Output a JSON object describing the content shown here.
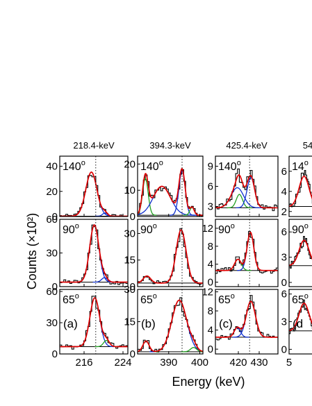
{
  "chart_data": {
    "type": "line",
    "xlabel": "Energy (keV)",
    "ylabel": "Counts (×10²)",
    "series_legend": {
      "data": "#000000",
      "total_fit": "#e00000",
      "peak_main": "#1030d0",
      "peak_secondary": "#20a020",
      "background": "#000000"
    },
    "columns": [
      {
        "title": "218.4-keV",
        "letter": "(a)",
        "xlim": [
          211,
          225
        ],
        "xticks": [
          216,
          224
        ],
        "centroid": 218.4,
        "rows": [
          {
            "angle": "140",
            "ylim": [
              0,
              48
            ],
            "yticks": [
              0,
              20,
              40
            ],
            "background": 0.3,
            "peaks": [
              {
                "c": 217.5,
                "w": 1.15,
                "a": 35,
                "color": "peak_main"
              },
              {
                "c": 220.3,
                "w": 0.5,
                "a": 2.5,
                "color": "peak_main"
              }
            ]
          },
          {
            "angle": "90",
            "ylim": [
              0,
              60
            ],
            "yticks": [
              0,
              30,
              60
            ],
            "background": 4,
            "peaks": [
              {
                "c": 218.1,
                "w": 0.95,
                "a": 51,
                "color": "peak_main"
              },
              {
                "c": 220.2,
                "w": 0.6,
                "a": 4,
                "color": "peak_main"
              }
            ]
          },
          {
            "angle": "65",
            "ylim": [
              0,
              62
            ],
            "yticks": [
              0,
              30,
              60
            ],
            "background": 7,
            "peaks": [
              {
                "c": 218.2,
                "w": 1.0,
                "a": 47,
                "color": "peak_main"
              },
              {
                "c": 220.6,
                "w": 0.6,
                "a": 6,
                "color": "peak_secondary"
              }
            ]
          }
        ]
      },
      {
        "title": "394.3-keV",
        "letter": "(b)",
        "xlim": [
          380,
          401
        ],
        "xticks": [
          390,
          400
        ],
        "centroid": 394.3,
        "rows": [
          {
            "angle": "140",
            "ylim": [
              0,
              23
            ],
            "yticks": [
              0,
              10,
              20
            ],
            "background": 0.5,
            "peaks": [
              {
                "c": 382.5,
                "w": 0.9,
                "a": 14,
                "color": "peak_secondary"
              },
              {
                "c": 387.8,
                "w": 2.8,
                "a": 11,
                "color": "peak_main"
              },
              {
                "c": 394.3,
                "w": 1.0,
                "a": 17,
                "color": "peak_main"
              },
              {
                "c": 397.5,
                "w": 0.7,
                "a": 3,
                "color": "peak_secondary"
              }
            ]
          },
          {
            "angle": "90",
            "ylim": [
              0,
              38
            ],
            "yticks": [
              0,
              15,
              30
            ],
            "background": 2,
            "peaks": [
              {
                "c": 383,
                "w": 1.2,
                "a": 4,
                "color": "peak_secondary"
              },
              {
                "c": 394.0,
                "w": 1.6,
                "a": 30,
                "color": "peak_main"
              }
            ]
          },
          {
            "angle": "65",
            "ylim": [
              0,
              30
            ],
            "yticks": [
              0,
              15,
              30
            ],
            "background": 1,
            "peaks": [
              {
                "c": 382.7,
                "w": 1.0,
                "a": 5,
                "color": "peak_secondary"
              },
              {
                "c": 393.4,
                "w": 2.4,
                "a": 24,
                "color": "peak_main"
              },
              {
                "c": 398,
                "w": 1.0,
                "a": 2,
                "color": "peak_secondary"
              }
            ]
          }
        ]
      },
      {
        "title": "425.4-keV",
        "letter": "(c)",
        "xlim": [
          409,
          439
        ],
        "xticks": [
          420,
          430
        ],
        "centroid": 425.4,
        "rows": [
          {
            "angle": "140",
            "ylim": [
              1.5,
              10.5
            ],
            "yticks": [
              3,
              6,
              9
            ],
            "background": 2.8,
            "peaks": [
              {
                "c": 419.5,
                "w": 3.0,
                "a": 3.0,
                "color": "peak_main"
              },
              {
                "c": 420.5,
                "w": 1.5,
                "a": 2.0,
                "color": "peak_secondary"
              },
              {
                "c": 426,
                "w": 1.8,
                "a": 4.5,
                "color": "peak_main"
              }
            ]
          },
          {
            "angle": "90",
            "ylim": [
              -1,
              14
            ],
            "yticks": [
              0,
              4,
              8,
              12
            ],
            "background": 2.6,
            "peaks": [
              {
                "c": 419.8,
                "w": 1.6,
                "a": 2.5,
                "color": "peak_secondary"
              },
              {
                "c": 425.8,
                "w": 1.6,
                "a": 8.5,
                "color": "peak_main"
              }
            ]
          },
          {
            "angle": "65",
            "ylim": [
              -1,
              12.5
            ],
            "yticks": [
              0,
              4,
              8,
              12
            ],
            "background": 2.5,
            "peaks": [
              {
                "c": 419.5,
                "w": 1.5,
                "a": 2.0,
                "color": "peak_main"
              },
              {
                "c": 426.0,
                "w": 2.2,
                "a": 7.5,
                "color": "peak_main"
              }
            ]
          }
        ]
      },
      {
        "title": "54",
        "letter": "(d",
        "xlim": [
          500,
          530
        ],
        "xticks": [
          500
        ],
        "xtick_labels": [
          "5"
        ],
        "centroid": null,
        "rows": [
          {
            "angle": "14",
            "ylim": [
              1.5,
              7.5
            ],
            "yticks": [
              2,
              4,
              6
            ],
            "background": 2.5,
            "peaks": [
              {
                "c": 512,
                "w": 4,
                "a": 3,
                "color": "peak_main"
              }
            ]
          },
          {
            "angle": "90",
            "ylim": [
              -0.5,
              7.5
            ],
            "yticks": [
              0,
              3,
              6
            ],
            "background": 2,
            "peaks": [
              {
                "c": 512,
                "w": 4,
                "a": 3,
                "color": "peak_main"
              }
            ]
          },
          {
            "angle": "65",
            "ylim": [
              -0.5,
              6.5
            ],
            "yticks": [
              0,
              3,
              6
            ],
            "background": 2,
            "peaks": [
              {
                "c": 512,
                "w": 4,
                "a": 3,
                "color": "peak_main"
              }
            ]
          }
        ]
      }
    ]
  }
}
